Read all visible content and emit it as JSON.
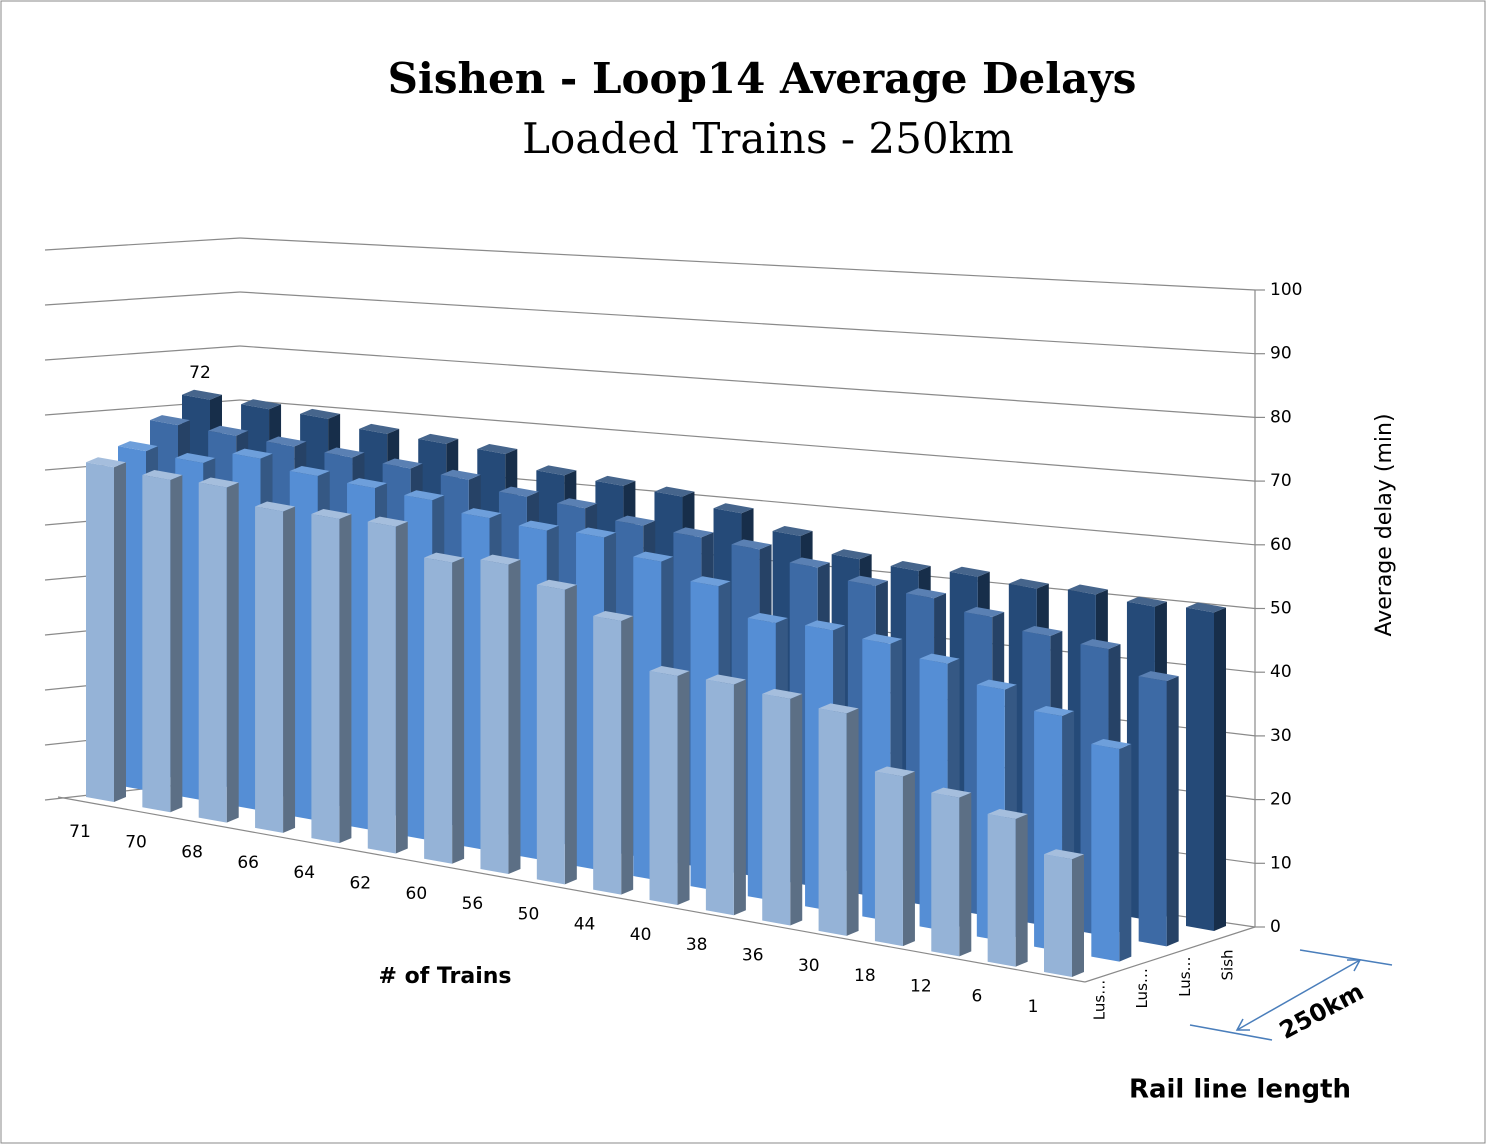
{
  "chart_data": {
    "type": "bar3d",
    "title": "Sishen - Loop14 Average Delays",
    "subtitle": "Loaded Trains - 250km",
    "x_label": "# of Trains",
    "y_label": "Average delay (min)",
    "z_label": "Rail line length",
    "annotation": "250km",
    "categories": [
      "71",
      "70",
      "68",
      "66",
      "64",
      "62",
      "60",
      "56",
      "50",
      "44",
      "40",
      "38",
      "36",
      "30",
      "18",
      "12",
      "6",
      "1"
    ],
    "series": [
      {
        "name": "Lus…",
        "color": "#95b3d7",
        "values": [
          62,
          61,
          61,
          58,
          58,
          58,
          53,
          54,
          51,
          47,
          39,
          39,
          38,
          37,
          28,
          26,
          24,
          19
        ]
      },
      {
        "name": "Lus…",
        "color": "#558ed5",
        "values": [
          64,
          63,
          65,
          63,
          62,
          61,
          59,
          58,
          58,
          55,
          52,
          47,
          47,
          46,
          44,
          41,
          38,
          34
        ]
      },
      {
        "name": "Lus…",
        "color": "#3d6aa5",
        "values": [
          68,
          67,
          66,
          65,
          64,
          63,
          61,
          60,
          58,
          57,
          56,
          54,
          52,
          51,
          49,
          47,
          46,
          42
        ]
      },
      {
        "name": "Sish",
        "color": "#254a78",
        "values": [
          72,
          71,
          70,
          68,
          67,
          66,
          63,
          62,
          61,
          59,
          56,
          53,
          52,
          52,
          51,
          51,
          50,
          50
        ],
        "value_labels": [
          "72",
          null,
          null,
          null,
          null,
          null,
          null,
          null,
          null,
          null,
          null,
          null,
          null,
          null,
          null,
          null,
          null,
          null
        ]
      }
    ],
    "ylim": [
      0,
      100
    ],
    "yticks": [
      0,
      10,
      20,
      30,
      40,
      50,
      60,
      70,
      80,
      90,
      100
    ],
    "grid": true
  }
}
